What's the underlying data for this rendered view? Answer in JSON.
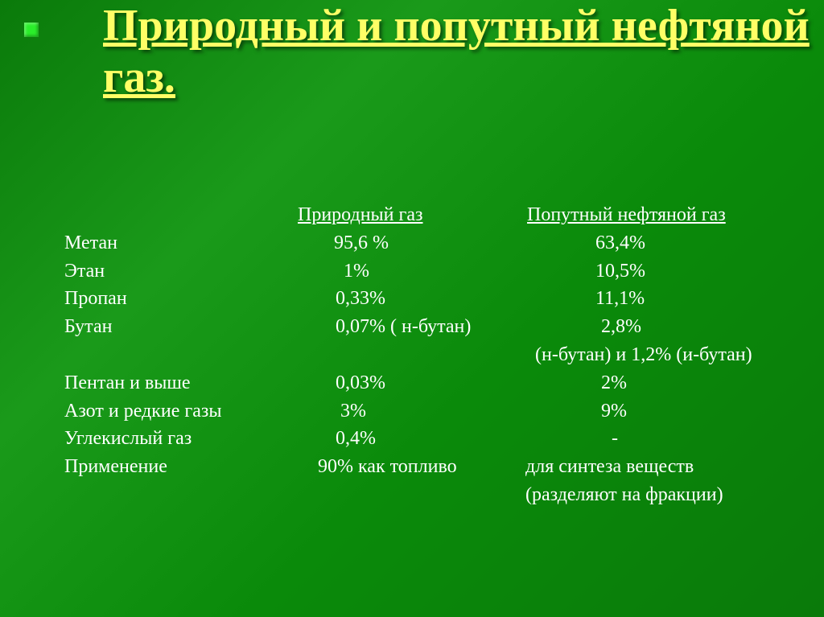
{
  "title": "Природный и попутный нефтяной газ.",
  "headers": {
    "natural": "Природный газ",
    "petro": "Попутный нефтяной газ"
  },
  "rows": [
    {
      "label": "Метан",
      "natural": "95,6 %",
      "petro": "63,4%",
      "n_pad": 80,
      "p_pad": 115
    },
    {
      "label": "Этан",
      "natural": "1%",
      "petro": "10,5%",
      "n_pad": 92,
      "p_pad": 115
    },
    {
      "label": "Пропан",
      "natural": "0,33%",
      "petro": "11,1%",
      "n_pad": 82,
      "p_pad": 115
    },
    {
      "label": "Бутан",
      "natural": "0,07% ( н-бутан)",
      "petro": "2,8%",
      "n_pad": 82,
      "p_pad": 122
    },
    {
      "label": "",
      "natural": "",
      "petro": "(н-бутан) и 1,2% (и-бутан)",
      "n_pad": 0,
      "p_pad": 40
    },
    {
      "label": "Пентан и выше",
      "natural": "0,03%",
      "petro": "2%",
      "n_pad": 82,
      "p_pad": 122
    },
    {
      "label": "Азот и редкие газы",
      "natural": "3%",
      "petro": "9%",
      "n_pad": 88,
      "p_pad": 122
    },
    {
      "label": "Углекислый газ",
      "natural": "0,4%",
      "petro": "-",
      "n_pad": 82,
      "p_pad": 135
    },
    {
      "label": "Применение",
      "natural": "90% как топливо",
      "petro": "для синтеза веществ",
      "n_pad": 60,
      "p_pad": 28
    },
    {
      "label": "",
      "natural": "",
      "petro": "(разделяют на фракции)",
      "n_pad": 0,
      "p_pad": 28
    }
  ],
  "colors": {
    "title": "#ffff66",
    "text": "#ffffff",
    "bullet": "#2aee2a",
    "bg_start": "#0a7a0a",
    "bg_end": "#0a8a0a"
  },
  "fonts": {
    "title_size": 56,
    "body_size": 24,
    "family": "Georgia, Times New Roman, serif"
  }
}
